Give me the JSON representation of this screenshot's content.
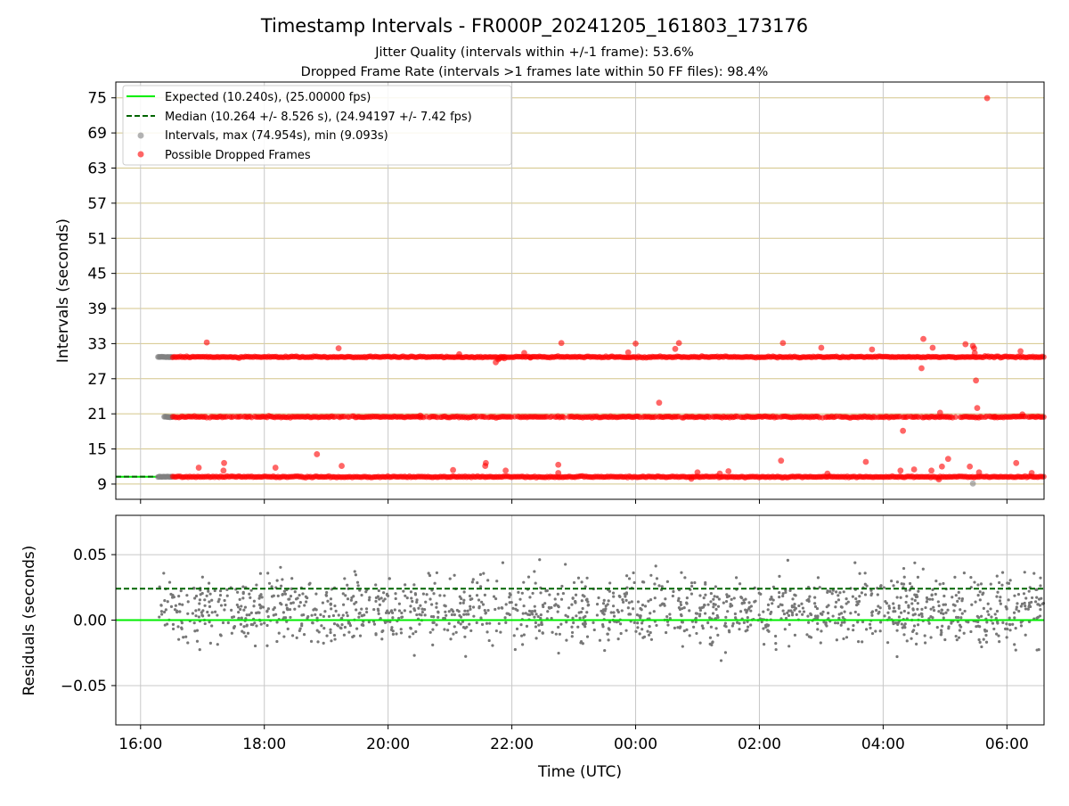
{
  "chart_data": [
    {
      "type": "scatter",
      "title": "Timestamp Intervals - FR000P_20241205_161803_173176",
      "subtitle_1": "Jitter Quality (intervals within +/-1 frame): 53.6%",
      "subtitle_2": "Dropped Frame Rate (intervals >1 frames late within 50 FF files): 98.4%",
      "ylabel": "Intervals (seconds)",
      "ylim": [
        6.4,
        77.7
      ],
      "yticks": [
        9,
        15,
        21,
        27,
        33,
        39,
        45,
        51,
        57,
        63,
        69,
        75
      ],
      "ytick_labels": [
        "9",
        "15",
        "21",
        "27",
        "33",
        "39",
        "45",
        "51",
        "57",
        "63",
        "69",
        "75"
      ],
      "xlim_hours": [
        -0.4,
        14.6
      ],
      "xticks": [
        0,
        2,
        4,
        6,
        8,
        10,
        12,
        14
      ],
      "xtick_labels": [
        "16:00",
        "18:00",
        "20:00",
        "22:00",
        "00:00",
        "02:00",
        "04:00",
        "06:00"
      ],
      "grid": true,
      "legend_position": "top-left",
      "legend": [
        {
          "label": "Expected (10.240s), (25.00000 fps)",
          "style": "solid-line",
          "color": "#00ee00"
        },
        {
          "label": "Median (10.264 +/- 8.526 s), (24.94197 +/- 7.42 fps)",
          "style": "dashed-line",
          "color": "#006400"
        },
        {
          "label": "Intervals, max (74.954s), min (9.093s)",
          "style": "marker",
          "color": "#808080"
        },
        {
          "label": "Possible Dropped Frames",
          "style": "marker",
          "color": "#ff0000"
        }
      ],
      "expected_interval": 10.24,
      "median_interval": 10.264,
      "data_start_hour": 0.28,
      "normal_interval_end_hour": 0.52,
      "data_end_hour": 14.6,
      "bands": [
        {
          "level": 10.24,
          "series": "Possible Dropped Frames",
          "hour_ranges": [
            [
              0.52,
              14.6
            ]
          ]
        },
        {
          "level": 20.48,
          "series": "Possible Dropped Frames",
          "hour_ranges": [
            [
              0.52,
              14.6
            ]
          ]
        },
        {
          "level": 30.72,
          "series": "Possible Dropped Frames",
          "hour_ranges": [
            [
              0.52,
              14.6
            ]
          ]
        }
      ],
      "normal_bands": [
        {
          "level": 10.24,
          "hour_ranges": [
            [
              0.28,
              0.52
            ]
          ]
        },
        {
          "level": 20.48,
          "hour_ranges": [
            [
              0.38,
              0.52
            ]
          ]
        },
        {
          "level": 30.72,
          "hour_ranges": [
            [
              0.28,
              0.52
            ]
          ]
        }
      ],
      "outliers": [
        {
          "x": 13.68,
          "y": 74.95,
          "series": "Possible Dropped Frames"
        },
        {
          "x": 1.07,
          "y": 33.2,
          "series": "Possible Dropped Frames"
        },
        {
          "x": 3.2,
          "y": 32.2,
          "series": "Possible Dropped Frames"
        },
        {
          "x": 5.15,
          "y": 31.2,
          "series": "Possible Dropped Frames"
        },
        {
          "x": 6.2,
          "y": 31.4,
          "series": "Possible Dropped Frames"
        },
        {
          "x": 5.74,
          "y": 29.8,
          "series": "Possible Dropped Frames"
        },
        {
          "x": 5.78,
          "y": 30.3,
          "series": "Possible Dropped Frames"
        },
        {
          "x": 5.8,
          "y": 30.5,
          "series": "Possible Dropped Frames"
        },
        {
          "x": 5.85,
          "y": 30.6,
          "series": "Possible Dropped Frames"
        },
        {
          "x": 5.88,
          "y": 30.5,
          "series": "Possible Dropped Frames"
        },
        {
          "x": 6.3,
          "y": 30.6,
          "series": "Possible Dropped Frames"
        },
        {
          "x": 6.8,
          "y": 33.1,
          "series": "Possible Dropped Frames"
        },
        {
          "x": 8.64,
          "y": 32.1,
          "series": "Possible Dropped Frames"
        },
        {
          "x": 8.7,
          "y": 33.1,
          "series": "Possible Dropped Frames"
        },
        {
          "x": 7.88,
          "y": 31.5,
          "series": "Possible Dropped Frames"
        },
        {
          "x": 8.0,
          "y": 33.0,
          "series": "Possible Dropped Frames"
        },
        {
          "x": 10.38,
          "y": 33.1,
          "series": "Possible Dropped Frames"
        },
        {
          "x": 11.0,
          "y": 32.3,
          "series": "Possible Dropped Frames"
        },
        {
          "x": 11.82,
          "y": 32.0,
          "series": "Possible Dropped Frames"
        },
        {
          "x": 12.65,
          "y": 33.8,
          "series": "Possible Dropped Frames"
        },
        {
          "x": 12.62,
          "y": 28.8,
          "series": "Possible Dropped Frames"
        },
        {
          "x": 13.33,
          "y": 32.9,
          "series": "Possible Dropped Frames"
        },
        {
          "x": 13.45,
          "y": 32.6,
          "series": "Possible Dropped Frames"
        },
        {
          "x": 13.47,
          "y": 32.2,
          "series": "Possible Dropped Frames"
        },
        {
          "x": 13.48,
          "y": 31.4,
          "series": "Possible Dropped Frames"
        },
        {
          "x": 13.5,
          "y": 26.7,
          "series": "Possible Dropped Frames"
        },
        {
          "x": 13.52,
          "y": 22.0,
          "series": "Possible Dropped Frames"
        },
        {
          "x": 14.22,
          "y": 31.7,
          "series": "Possible Dropped Frames"
        },
        {
          "x": 12.8,
          "y": 32.3,
          "series": "Possible Dropped Frames"
        },
        {
          "x": 8.38,
          "y": 22.9,
          "series": "Possible Dropped Frames"
        },
        {
          "x": 12.92,
          "y": 21.2,
          "series": "Possible Dropped Frames"
        },
        {
          "x": 14.25,
          "y": 20.9,
          "series": "Possible Dropped Frames"
        },
        {
          "x": 13.8,
          "y": 20.4,
          "series": "Possible Dropped Frames"
        },
        {
          "x": 4.52,
          "y": 20.7,
          "series": "Possible Dropped Frames"
        },
        {
          "x": 12.32,
          "y": 18.1,
          "series": "Possible Dropped Frames"
        },
        {
          "x": 0.94,
          "y": 11.8,
          "series": "Possible Dropped Frames"
        },
        {
          "x": 1.35,
          "y": 12.6,
          "series": "Possible Dropped Frames"
        },
        {
          "x": 1.34,
          "y": 11.3,
          "series": "Possible Dropped Frames"
        },
        {
          "x": 2.18,
          "y": 11.8,
          "series": "Possible Dropped Frames"
        },
        {
          "x": 2.85,
          "y": 14.1,
          "series": "Possible Dropped Frames"
        },
        {
          "x": 3.25,
          "y": 12.1,
          "series": "Possible Dropped Frames"
        },
        {
          "x": 5.05,
          "y": 11.4,
          "series": "Possible Dropped Frames"
        },
        {
          "x": 5.58,
          "y": 12.6,
          "series": "Possible Dropped Frames"
        },
        {
          "x": 5.57,
          "y": 12.1,
          "series": "Possible Dropped Frames"
        },
        {
          "x": 5.9,
          "y": 11.3,
          "series": "Possible Dropped Frames"
        },
        {
          "x": 6.75,
          "y": 12.3,
          "series": "Possible Dropped Frames"
        },
        {
          "x": 6.75,
          "y": 10.9,
          "series": "Possible Dropped Frames"
        },
        {
          "x": 9.0,
          "y": 11.0,
          "series": "Possible Dropped Frames"
        },
        {
          "x": 9.36,
          "y": 10.8,
          "series": "Possible Dropped Frames"
        },
        {
          "x": 9.5,
          "y": 11.2,
          "series": "Possible Dropped Frames"
        },
        {
          "x": 10.35,
          "y": 13.0,
          "series": "Possible Dropped Frames"
        },
        {
          "x": 11.1,
          "y": 10.8,
          "series": "Possible Dropped Frames"
        },
        {
          "x": 11.72,
          "y": 12.8,
          "series": "Possible Dropped Frames"
        },
        {
          "x": 12.28,
          "y": 11.3,
          "series": "Possible Dropped Frames"
        },
        {
          "x": 12.5,
          "y": 11.5,
          "series": "Possible Dropped Frames"
        },
        {
          "x": 12.78,
          "y": 11.3,
          "series": "Possible Dropped Frames"
        },
        {
          "x": 12.95,
          "y": 12.0,
          "series": "Possible Dropped Frames"
        },
        {
          "x": 13.05,
          "y": 13.3,
          "series": "Possible Dropped Frames"
        },
        {
          "x": 13.4,
          "y": 12.0,
          "series": "Possible Dropped Frames"
        },
        {
          "x": 13.55,
          "y": 11.0,
          "series": "Possible Dropped Frames"
        },
        {
          "x": 14.15,
          "y": 12.6,
          "series": "Possible Dropped Frames"
        },
        {
          "x": 14.4,
          "y": 10.9,
          "series": "Possible Dropped Frames"
        },
        {
          "x": 13.45,
          "y": 9.09,
          "series": "Intervals, max (74.954s), min (9.093s)"
        },
        {
          "x": 12.9,
          "y": 9.8,
          "series": "Possible Dropped Frames"
        },
        {
          "x": 8.9,
          "y": 9.9,
          "series": "Possible Dropped Frames"
        }
      ]
    },
    {
      "type": "scatter",
      "ylabel": "Residuals (seconds)",
      "xlabel": "Time (UTC)",
      "ylim": [
        -0.08,
        0.08
      ],
      "yticks": [
        -0.05,
        0.0,
        0.05
      ],
      "ytick_labels": [
        "−0.05",
        "0.00",
        "0.05"
      ],
      "xlim_hours": [
        -0.4,
        14.6
      ],
      "xticks": [
        0,
        2,
        4,
        6,
        8,
        10,
        12,
        14
      ],
      "xtick_labels": [
        "16:00",
        "18:00",
        "20:00",
        "22:00",
        "00:00",
        "02:00",
        "04:00",
        "06:00"
      ],
      "grid": true,
      "expected_residual": 0.0,
      "median_residual": 0.024,
      "residual_x_range": [
        0.3,
        14.6
      ],
      "residual_center": 0.008,
      "residual_spread": 0.018,
      "point_color": "#777777"
    }
  ]
}
